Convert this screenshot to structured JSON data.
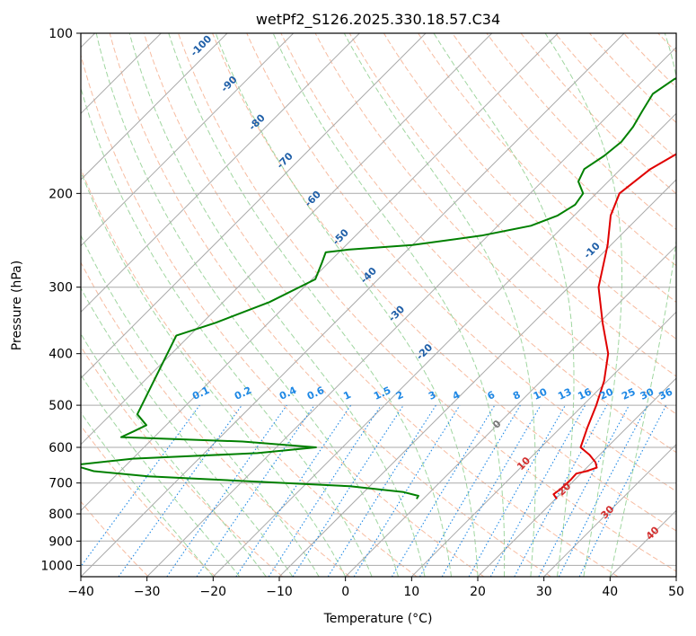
{
  "chart_data": {
    "type": "skew-t",
    "title": "wetPf2_S126.2025.330.18.57.C34",
    "xlabel": "Temperature (°C)",
    "ylabel": "Pressure (hPa)",
    "xlim": [
      -40,
      50
    ],
    "ylim": [
      1050,
      100
    ],
    "x_ticks": [
      "−40",
      "−30",
      "−20",
      "−10",
      "0",
      "10",
      "20",
      "30",
      "40",
      "50"
    ],
    "y_ticks": [
      "100",
      "200",
      "300",
      "400",
      "500",
      "600",
      "700",
      "800",
      "900",
      "1000"
    ],
    "grid": true,
    "colors": {
      "temperature": "#e00000",
      "dewpoint": "#008000",
      "isotherm": "#aaaaaa",
      "dry_adiabat": "#f4a582",
      "moist_adiabat": "#88cc88",
      "mixing_ratio": "#1e88e5",
      "frame": "#000000"
    },
    "temperature_profile": [
      {
        "p": 750,
        "t": 20.2
      },
      {
        "p": 735,
        "t": 19.0
      },
      {
        "p": 718,
        "t": 19.3
      },
      {
        "p": 690,
        "t": 19.4
      },
      {
        "p": 672,
        "t": 19.3
      },
      {
        "p": 665,
        "t": 20.5
      },
      {
        "p": 655,
        "t": 21.5
      },
      {
        "p": 640,
        "t": 20.5
      },
      {
        "p": 620,
        "t": 18.5
      },
      {
        "p": 600,
        "t": 16.0
      },
      {
        "p": 550,
        "t": 14.0
      },
      {
        "p": 500,
        "t": 12.0
      },
      {
        "p": 450,
        "t": 9.5
      },
      {
        "p": 400,
        "t": 6.0
      },
      {
        "p": 350,
        "t": 0.5
      },
      {
        "p": 300,
        "t": -5.5
      },
      {
        "p": 250,
        "t": -10.5
      },
      {
        "p": 220,
        "t": -14.5
      },
      {
        "p": 200,
        "t": -16.5
      },
      {
        "p": 180,
        "t": -15.5
      },
      {
        "p": 160,
        "t": -12.5
      },
      {
        "p": 140,
        "t": -8.0
      },
      {
        "p": 125,
        "t": -2.5
      },
      {
        "p": 115,
        "t": 1.2
      },
      {
        "p": 108,
        "t": 1.5
      },
      {
        "p": 100,
        "t": 2.0
      }
    ],
    "dewpoint_profile": [
      {
        "p": 750,
        "t": -1.0
      },
      {
        "p": 740,
        "t": -1.2
      },
      {
        "p": 728,
        "t": -4.0
      },
      {
        "p": 710,
        "t": -13.0
      },
      {
        "p": 680,
        "t": -45.0
      },
      {
        "p": 665,
        "t": -54.0
      },
      {
        "p": 648,
        "t": -58.0
      },
      {
        "p": 630,
        "t": -50.0
      },
      {
        "p": 615,
        "t": -32.0
      },
      {
        "p": 600,
        "t": -24.0
      },
      {
        "p": 585,
        "t": -36.0
      },
      {
        "p": 574,
        "t": -55.0
      },
      {
        "p": 560,
        "t": -54.0
      },
      {
        "p": 545,
        "t": -53.0
      },
      {
        "p": 520,
        "t": -56.0
      },
      {
        "p": 370,
        "t": -62.0
      },
      {
        "p": 350,
        "t": -58.0
      },
      {
        "p": 320,
        "t": -53.0
      },
      {
        "p": 290,
        "t": -49.5
      },
      {
        "p": 270,
        "t": -51.0
      },
      {
        "p": 258,
        "t": -52.0
      },
      {
        "p": 255,
        "t": -49.0
      },
      {
        "p": 250,
        "t": -40.0
      },
      {
        "p": 240,
        "t": -31.0
      },
      {
        "p": 230,
        "t": -25.0
      },
      {
        "p": 220,
        "t": -22.5
      },
      {
        "p": 210,
        "t": -21.5
      },
      {
        "p": 200,
        "t": -22.0
      },
      {
        "p": 190,
        "t": -24.5
      },
      {
        "p": 180,
        "t": -25.5
      },
      {
        "p": 170,
        "t": -24.5
      },
      {
        "p": 160,
        "t": -24.0
      },
      {
        "p": 150,
        "t": -24.5
      },
      {
        "p": 140,
        "t": -25.5
      },
      {
        "p": 130,
        "t": -26.5
      },
      {
        "p": 122,
        "t": -25.5
      },
      {
        "p": 115,
        "t": -23.0
      },
      {
        "p": 108,
        "t": -20.5
      },
      {
        "p": 100,
        "t": -18.0
      }
    ],
    "mixing_ratio_labels": [
      "0.1",
      "0.2",
      "0.4",
      "0.6",
      "1",
      "1.5",
      "2",
      "3",
      "4",
      "6",
      "8",
      "10",
      "13",
      "16",
      "20",
      "25",
      "30",
      "36"
    ],
    "mixing_ratio_values": [
      0.1,
      0.2,
      0.4,
      0.6,
      1,
      1.5,
      2,
      3,
      4,
      6,
      8,
      10,
      13,
      16,
      20,
      25,
      30,
      36
    ],
    "isotherm_labels": [
      "-100",
      "-90",
      "-80",
      "-70",
      "-60",
      "-50",
      "-40",
      "-30",
      "-20",
      "-10",
      "0",
      "10",
      "20",
      "30",
      "40"
    ],
    "isotherm_values": [
      -100,
      -90,
      -80,
      -70,
      -60,
      -50,
      -40,
      -30,
      -20,
      -10,
      0,
      10,
      20,
      30,
      40
    ]
  }
}
